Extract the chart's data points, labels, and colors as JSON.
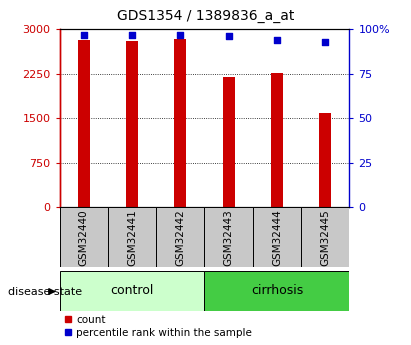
{
  "title": "GDS1354 / 1389836_a_at",
  "samples": [
    "GSM32440",
    "GSM32441",
    "GSM32442",
    "GSM32443",
    "GSM32444",
    "GSM32445"
  ],
  "counts": [
    2820,
    2810,
    2840,
    2200,
    2260,
    1580
  ],
  "percentile_ranks": [
    97,
    97,
    97,
    96,
    94,
    93
  ],
  "groups": [
    {
      "label": "control",
      "color_light": "#ccffcc",
      "color_dark": "#ccffcc",
      "start": 0,
      "end": 3
    },
    {
      "label": "cirrhosis",
      "color_light": "#44cc44",
      "color_dark": "#44cc44",
      "start": 3,
      "end": 6
    }
  ],
  "ylim_left": [
    0,
    3000
  ],
  "ylim_right": [
    0,
    100
  ],
  "yticks_left": [
    0,
    750,
    1500,
    2250,
    3000
  ],
  "ytick_labels_left": [
    "0",
    "750",
    "1500",
    "2250",
    "3000"
  ],
  "yticks_right": [
    0,
    25,
    50,
    75,
    100
  ],
  "ytick_labels_right": [
    "0",
    "25",
    "50",
    "75",
    "100%"
  ],
  "bar_color": "#cc0000",
  "dot_color": "#0000cc",
  "bar_width": 0.25,
  "label_box_color": "#c8c8c8",
  "left_axis_color": "#cc0000",
  "right_axis_color": "#0000cc",
  "title_fontsize": 10,
  "tick_fontsize": 8,
  "label_fontsize": 9,
  "disease_state_label": "disease state",
  "legend_count_label": "count",
  "legend_pct_label": "percentile rank within the sample"
}
